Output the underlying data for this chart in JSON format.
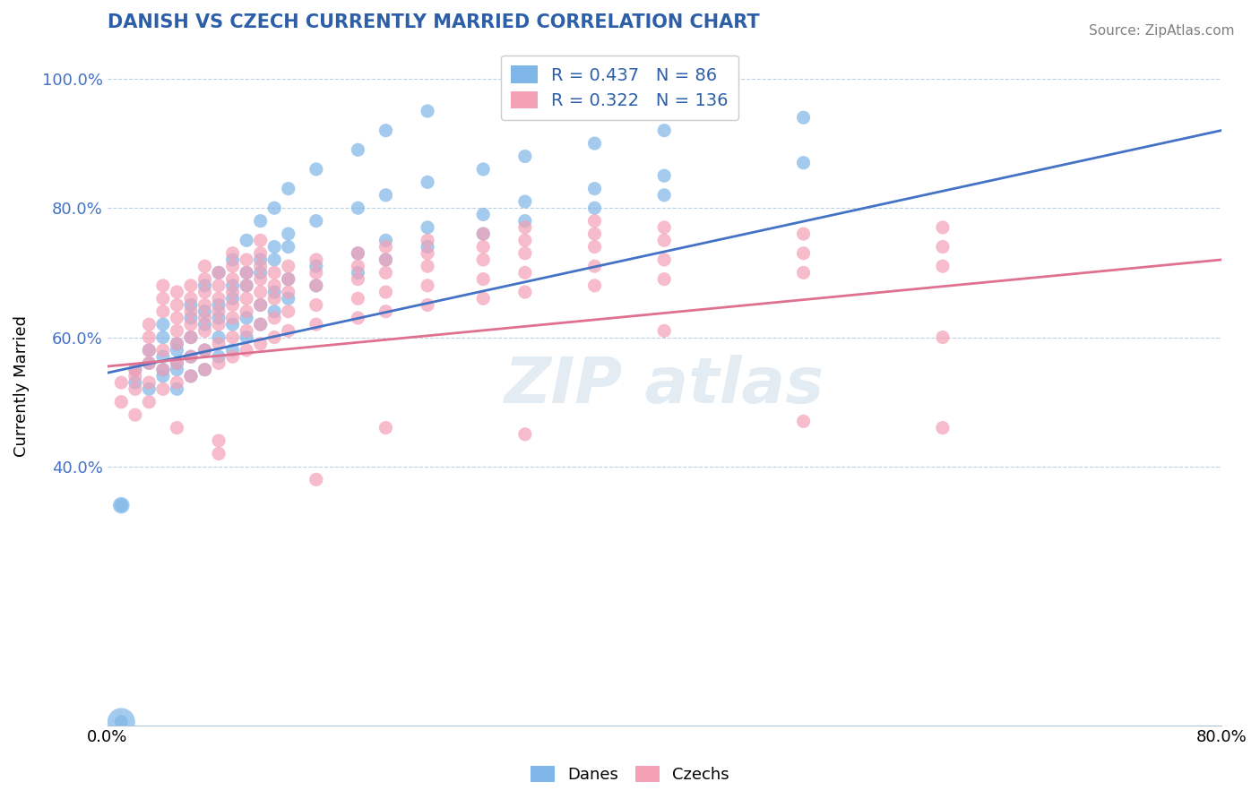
{
  "title": "DANISH VS CZECH CURRENTLY MARRIED CORRELATION CHART",
  "source_text": "Source: ZipAtlas.com",
  "xlabel": "",
  "ylabel": "Currently Married",
  "xlim": [
    0.0,
    0.8
  ],
  "ylim": [
    0.0,
    1.05
  ],
  "xtick_labels": [
    "0.0%",
    "80.0%"
  ],
  "ytick_labels": [
    "40.0%",
    "60.0%",
    "80.0%",
    "100.0%"
  ],
  "danes_color": "#7eb6e8",
  "czechs_color": "#f4a0b5",
  "danes_line_color": "#4472c4",
  "czechs_line_color": "#e07090",
  "R_danes": 0.437,
  "N_danes": 86,
  "R_czechs": 0.322,
  "N_czechs": 136,
  "legend_label_danes": "Danes",
  "legend_label_czechs": "Czechs",
  "title_color": "#2d5fa8",
  "legend_text_color": "#2d5fa8",
  "watermark": "ZIPAtlas",
  "danes_points": [
    [
      0.02,
      0.53
    ],
    [
      0.02,
      0.55
    ],
    [
      0.03,
      0.58
    ],
    [
      0.03,
      0.52
    ],
    [
      0.03,
      0.56
    ],
    [
      0.04,
      0.54
    ],
    [
      0.04,
      0.57
    ],
    [
      0.04,
      0.6
    ],
    [
      0.04,
      0.55
    ],
    [
      0.04,
      0.62
    ],
    [
      0.05,
      0.56
    ],
    [
      0.05,
      0.58
    ],
    [
      0.05,
      0.59
    ],
    [
      0.05,
      0.55
    ],
    [
      0.05,
      0.52
    ],
    [
      0.06,
      0.57
    ],
    [
      0.06,
      0.6
    ],
    [
      0.06,
      0.63
    ],
    [
      0.06,
      0.54
    ],
    [
      0.06,
      0.65
    ],
    [
      0.07,
      0.58
    ],
    [
      0.07,
      0.62
    ],
    [
      0.07,
      0.55
    ],
    [
      0.07,
      0.68
    ],
    [
      0.07,
      0.64
    ],
    [
      0.08,
      0.6
    ],
    [
      0.08,
      0.65
    ],
    [
      0.08,
      0.57
    ],
    [
      0.08,
      0.7
    ],
    [
      0.08,
      0.63
    ],
    [
      0.09,
      0.62
    ],
    [
      0.09,
      0.68
    ],
    [
      0.09,
      0.58
    ],
    [
      0.09,
      0.72
    ],
    [
      0.09,
      0.66
    ],
    [
      0.1,
      0.63
    ],
    [
      0.1,
      0.7
    ],
    [
      0.1,
      0.6
    ],
    [
      0.1,
      0.75
    ],
    [
      0.1,
      0.68
    ],
    [
      0.11,
      0.65
    ],
    [
      0.11,
      0.72
    ],
    [
      0.11,
      0.62
    ],
    [
      0.11,
      0.78
    ],
    [
      0.11,
      0.7
    ],
    [
      0.12,
      0.67
    ],
    [
      0.12,
      0.74
    ],
    [
      0.12,
      0.64
    ],
    [
      0.12,
      0.8
    ],
    [
      0.12,
      0.72
    ],
    [
      0.13,
      0.69
    ],
    [
      0.13,
      0.76
    ],
    [
      0.13,
      0.66
    ],
    [
      0.13,
      0.83
    ],
    [
      0.13,
      0.74
    ],
    [
      0.15,
      0.71
    ],
    [
      0.15,
      0.78
    ],
    [
      0.15,
      0.68
    ],
    [
      0.15,
      0.86
    ],
    [
      0.18,
      0.73
    ],
    [
      0.18,
      0.8
    ],
    [
      0.18,
      0.7
    ],
    [
      0.18,
      0.89
    ],
    [
      0.2,
      0.75
    ],
    [
      0.2,
      0.82
    ],
    [
      0.2,
      0.72
    ],
    [
      0.2,
      0.92
    ],
    [
      0.23,
      0.77
    ],
    [
      0.23,
      0.84
    ],
    [
      0.23,
      0.74
    ],
    [
      0.23,
      0.95
    ],
    [
      0.27,
      0.79
    ],
    [
      0.27,
      0.86
    ],
    [
      0.27,
      0.76
    ],
    [
      0.3,
      0.81
    ],
    [
      0.3,
      0.88
    ],
    [
      0.3,
      0.78
    ],
    [
      0.35,
      0.83
    ],
    [
      0.35,
      0.9
    ],
    [
      0.35,
      0.8
    ],
    [
      0.4,
      0.85
    ],
    [
      0.4,
      0.92
    ],
    [
      0.4,
      0.82
    ],
    [
      0.5,
      0.87
    ],
    [
      0.5,
      0.94
    ],
    [
      0.01,
      0.005
    ],
    [
      0.01,
      0.34
    ]
  ],
  "czechs_points": [
    [
      0.01,
      0.5
    ],
    [
      0.01,
      0.53
    ],
    [
      0.02,
      0.52
    ],
    [
      0.02,
      0.55
    ],
    [
      0.02,
      0.48
    ],
    [
      0.02,
      0.54
    ],
    [
      0.03,
      0.53
    ],
    [
      0.03,
      0.56
    ],
    [
      0.03,
      0.5
    ],
    [
      0.03,
      0.58
    ],
    [
      0.03,
      0.6
    ],
    [
      0.03,
      0.62
    ],
    [
      0.04,
      0.55
    ],
    [
      0.04,
      0.58
    ],
    [
      0.04,
      0.52
    ],
    [
      0.04,
      0.64
    ],
    [
      0.04,
      0.66
    ],
    [
      0.04,
      0.68
    ],
    [
      0.05,
      0.56
    ],
    [
      0.05,
      0.59
    ],
    [
      0.05,
      0.53
    ],
    [
      0.05,
      0.61
    ],
    [
      0.05,
      0.63
    ],
    [
      0.05,
      0.65
    ],
    [
      0.05,
      0.67
    ],
    [
      0.06,
      0.57
    ],
    [
      0.06,
      0.6
    ],
    [
      0.06,
      0.54
    ],
    [
      0.06,
      0.62
    ],
    [
      0.06,
      0.64
    ],
    [
      0.06,
      0.66
    ],
    [
      0.06,
      0.68
    ],
    [
      0.07,
      0.58
    ],
    [
      0.07,
      0.61
    ],
    [
      0.07,
      0.55
    ],
    [
      0.07,
      0.63
    ],
    [
      0.07,
      0.65
    ],
    [
      0.07,
      0.67
    ],
    [
      0.07,
      0.69
    ],
    [
      0.07,
      0.71
    ],
    [
      0.08,
      0.59
    ],
    [
      0.08,
      0.62
    ],
    [
      0.08,
      0.56
    ],
    [
      0.08,
      0.64
    ],
    [
      0.08,
      0.66
    ],
    [
      0.08,
      0.68
    ],
    [
      0.08,
      0.7
    ],
    [
      0.09,
      0.6
    ],
    [
      0.09,
      0.63
    ],
    [
      0.09,
      0.57
    ],
    [
      0.09,
      0.65
    ],
    [
      0.09,
      0.67
    ],
    [
      0.09,
      0.69
    ],
    [
      0.09,
      0.71
    ],
    [
      0.09,
      0.73
    ],
    [
      0.1,
      0.61
    ],
    [
      0.1,
      0.64
    ],
    [
      0.1,
      0.58
    ],
    [
      0.1,
      0.66
    ],
    [
      0.1,
      0.68
    ],
    [
      0.1,
      0.7
    ],
    [
      0.1,
      0.72
    ],
    [
      0.11,
      0.62
    ],
    [
      0.11,
      0.65
    ],
    [
      0.11,
      0.59
    ],
    [
      0.11,
      0.67
    ],
    [
      0.11,
      0.69
    ],
    [
      0.11,
      0.71
    ],
    [
      0.11,
      0.73
    ],
    [
      0.11,
      0.75
    ],
    [
      0.12,
      0.63
    ],
    [
      0.12,
      0.66
    ],
    [
      0.12,
      0.6
    ],
    [
      0.12,
      0.68
    ],
    [
      0.12,
      0.7
    ],
    [
      0.13,
      0.64
    ],
    [
      0.13,
      0.67
    ],
    [
      0.13,
      0.61
    ],
    [
      0.13,
      0.69
    ],
    [
      0.13,
      0.71
    ],
    [
      0.15,
      0.65
    ],
    [
      0.15,
      0.68
    ],
    [
      0.15,
      0.62
    ],
    [
      0.15,
      0.7
    ],
    [
      0.15,
      0.72
    ],
    [
      0.18,
      0.66
    ],
    [
      0.18,
      0.69
    ],
    [
      0.18,
      0.63
    ],
    [
      0.18,
      0.71
    ],
    [
      0.18,
      0.73
    ],
    [
      0.2,
      0.67
    ],
    [
      0.2,
      0.7
    ],
    [
      0.2,
      0.64
    ],
    [
      0.2,
      0.72
    ],
    [
      0.2,
      0.74
    ],
    [
      0.23,
      0.68
    ],
    [
      0.23,
      0.71
    ],
    [
      0.23,
      0.65
    ],
    [
      0.23,
      0.73
    ],
    [
      0.23,
      0.75
    ],
    [
      0.27,
      0.69
    ],
    [
      0.27,
      0.72
    ],
    [
      0.27,
      0.66
    ],
    [
      0.27,
      0.74
    ],
    [
      0.27,
      0.76
    ],
    [
      0.3,
      0.7
    ],
    [
      0.3,
      0.73
    ],
    [
      0.3,
      0.67
    ],
    [
      0.3,
      0.75
    ],
    [
      0.3,
      0.77
    ],
    [
      0.35,
      0.71
    ],
    [
      0.35,
      0.74
    ],
    [
      0.35,
      0.68
    ],
    [
      0.35,
      0.76
    ],
    [
      0.35,
      0.78
    ],
    [
      0.4,
      0.72
    ],
    [
      0.4,
      0.75
    ],
    [
      0.4,
      0.69
    ],
    [
      0.4,
      0.77
    ],
    [
      0.5,
      0.73
    ],
    [
      0.5,
      0.76
    ],
    [
      0.5,
      0.7
    ],
    [
      0.6,
      0.74
    ],
    [
      0.6,
      0.77
    ],
    [
      0.6,
      0.71
    ],
    [
      0.05,
      0.46
    ],
    [
      0.08,
      0.44
    ],
    [
      0.08,
      0.42
    ],
    [
      0.15,
      0.38
    ],
    [
      0.2,
      0.46
    ],
    [
      0.3,
      0.45
    ],
    [
      0.4,
      0.61
    ],
    [
      0.5,
      0.47
    ],
    [
      0.6,
      0.46
    ],
    [
      0.6,
      0.6
    ]
  ]
}
